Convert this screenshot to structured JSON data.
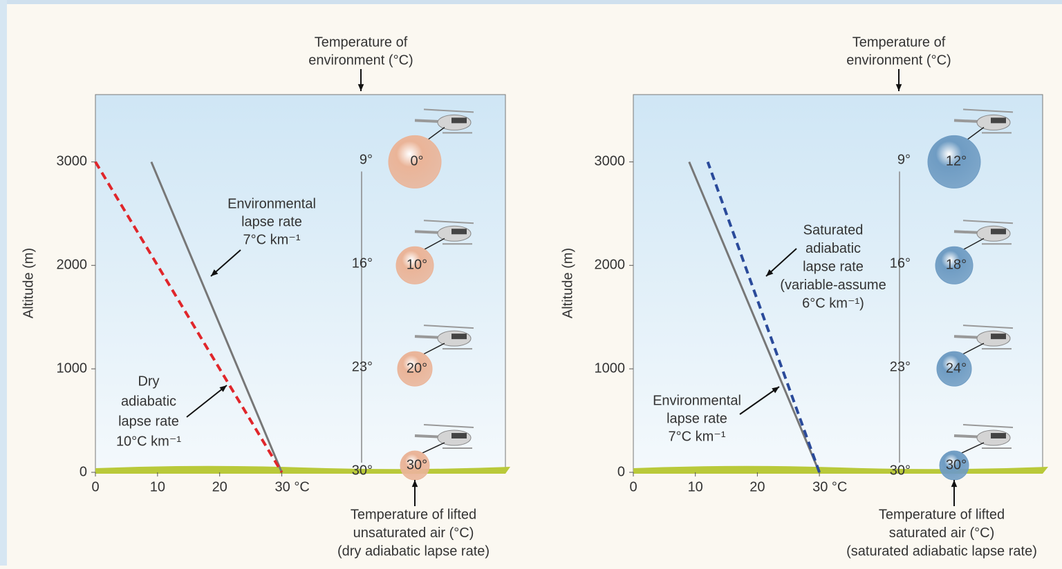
{
  "chart_data": [
    {
      "type": "line",
      "ylabel": "Altitude (m)",
      "xlim": [
        0,
        66
      ],
      "ylim": [
        0,
        3650
      ],
      "xticks": [
        0,
        10,
        20,
        {
          "value": 30,
          "label": "30 °C"
        }
      ],
      "yticks": [
        0,
        1000,
        2000,
        3000
      ],
      "series": [
        {
          "label_lines": [
            "Environmental",
            "lapse rate",
            "7°C km⁻¹"
          ],
          "color": "#777777",
          "dashed": false,
          "x": [
            9,
            30
          ],
          "values": [
            3000,
            0
          ]
        },
        {
          "label_lines": [
            "Dry",
            "adiabatic",
            "lapse rate",
            "10°C km⁻¹"
          ],
          "color": "#e0262b",
          "dashed": true,
          "x": [
            0,
            30
          ],
          "values": [
            3000,
            0
          ]
        }
      ],
      "levels": [
        3000,
        2000,
        1000,
        0
      ],
      "environment_temperatures": {
        "values": [
          9,
          16,
          23,
          30
        ],
        "value_labels": [
          "9°",
          "16°",
          "23°",
          "30°"
        ]
      },
      "parcel_temperatures": {
        "values": [
          0,
          10,
          20,
          30
        ],
        "value_labels": [
          "0°",
          "10°",
          "20°",
          "30°"
        ],
        "color": "#eab498"
      },
      "top_caption": [
        "Temperature of",
        "environment (°C)"
      ],
      "bottom_caption": [
        "Temperature of lifted",
        "unsaturated air (°C)",
        "(dry adiabatic lapse rate)"
      ]
    },
    {
      "type": "line",
      "ylabel": "Altitude (m)",
      "xlim": [
        0,
        66
      ],
      "ylim": [
        0,
        3650
      ],
      "xticks": [
        0,
        10,
        20,
        {
          "value": 30,
          "label": "30 °C"
        }
      ],
      "yticks": [
        0,
        1000,
        2000,
        3000
      ],
      "series": [
        {
          "label_lines": [
            "Environmental",
            "lapse rate",
            "7°C km⁻¹"
          ],
          "color": "#777777",
          "dashed": false,
          "x": [
            9,
            30
          ],
          "values": [
            3000,
            0
          ]
        },
        {
          "label_lines": [
            "Saturated",
            "adiabatic",
            "lapse rate",
            "(variable-assume",
            "6°C  km⁻¹)"
          ],
          "color": "#2a4a9a",
          "dashed": true,
          "x": [
            30,
            24,
            18,
            12
          ],
          "values": [
            0,
            1000,
            2000,
            3000
          ]
        }
      ],
      "levels": [
        3000,
        2000,
        1000,
        0
      ],
      "environment_temperatures": {
        "values": [
          9,
          16,
          23,
          30
        ],
        "value_labels": [
          "9°",
          "16°",
          "23°",
          "30°"
        ]
      },
      "parcel_temperatures": {
        "values": [
          12,
          18,
          24,
          30
        ],
        "value_labels": [
          "12°",
          "18°",
          "24°",
          "30°"
        ],
        "color": "#6f9cc3"
      },
      "top_caption": [
        "Temperature of",
        "environment (°C)"
      ],
      "bottom_caption": [
        "Temperature of lifted",
        "saturated air (°C)",
        "(saturated adiabatic lapse rate)"
      ]
    }
  ]
}
